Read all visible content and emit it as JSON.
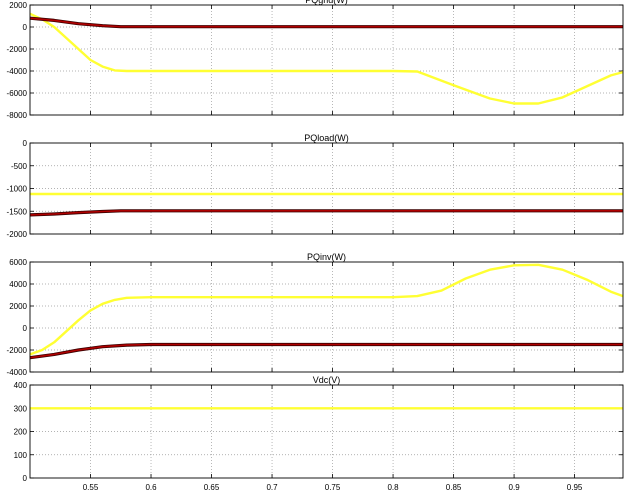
{
  "chart_data": [
    {
      "type": "line",
      "title": "PQgrid(W)",
      "xlim": [
        0.5,
        0.99
      ],
      "ylim": [
        -8000,
        2000
      ],
      "yticks": [
        2000,
        0,
        -2000,
        -4000,
        -6000,
        -8000
      ],
      "grid": true,
      "show_xticklabels": false,
      "series": [
        {
          "color": "#ffff33",
          "x": [
            0.5,
            0.51,
            0.52,
            0.53,
            0.54,
            0.55,
            0.56,
            0.57,
            0.58,
            0.6,
            0.7,
            0.8,
            0.82,
            0.85,
            0.88,
            0.9,
            0.92,
            0.94,
            0.96,
            0.98,
            0.99
          ],
          "y": [
            1200,
            700,
            0,
            -1000,
            -2000,
            -3000,
            -3600,
            -3950,
            -4000,
            -4000,
            -4000,
            -4000,
            -4050,
            -5300,
            -6500,
            -6950,
            -6950,
            -6400,
            -5400,
            -4400,
            -4100
          ]
        },
        {
          "color": "#b00000",
          "x": [
            0.5,
            0.52,
            0.54,
            0.56,
            0.575,
            0.6,
            0.7,
            0.8,
            0.9,
            0.99
          ],
          "y": [
            800,
            600,
            300,
            120,
            30,
            30,
            30,
            30,
            30,
            30
          ]
        }
      ]
    },
    {
      "type": "line",
      "title": "PQload(W)",
      "xlim": [
        0.5,
        0.99
      ],
      "ylim": [
        -2000,
        0
      ],
      "yticks": [
        0,
        -500,
        -1000,
        -1500,
        -2000
      ],
      "grid": true,
      "show_xticklabels": false,
      "series": [
        {
          "color": "#ffff33",
          "x": [
            0.5,
            0.99
          ],
          "y": [
            -1120,
            -1120
          ]
        },
        {
          "color": "#b00000",
          "x": [
            0.5,
            0.52,
            0.54,
            0.56,
            0.575,
            0.6,
            0.99
          ],
          "y": [
            -1580,
            -1560,
            -1530,
            -1505,
            -1490,
            -1490,
            -1490
          ]
        }
      ]
    },
    {
      "type": "line",
      "title": "PQinv(W)",
      "xlim": [
        0.5,
        0.99
      ],
      "ylim": [
        -4000,
        6000
      ],
      "yticks": [
        6000,
        4000,
        2000,
        0,
        -2000,
        -4000
      ],
      "grid": true,
      "show_xticklabels": false,
      "series": [
        {
          "color": "#ffff33",
          "x": [
            0.5,
            0.51,
            0.52,
            0.53,
            0.54,
            0.55,
            0.56,
            0.57,
            0.58,
            0.6,
            0.7,
            0.8,
            0.82,
            0.84,
            0.86,
            0.88,
            0.9,
            0.92,
            0.94,
            0.96,
            0.98,
            0.99
          ],
          "y": [
            -2400,
            -2000,
            -1300,
            -300,
            700,
            1600,
            2200,
            2550,
            2750,
            2800,
            2800,
            2800,
            2900,
            3400,
            4500,
            5300,
            5700,
            5750,
            5300,
            4400,
            3300,
            2900
          ]
        },
        {
          "color": "#b00000",
          "x": [
            0.5,
            0.52,
            0.54,
            0.56,
            0.58,
            0.6,
            0.99
          ],
          "y": [
            -2700,
            -2400,
            -2000,
            -1700,
            -1550,
            -1500,
            -1500
          ]
        }
      ]
    },
    {
      "type": "line",
      "title": "Vdc(V)",
      "xlim": [
        0.5,
        0.99
      ],
      "ylim": [
        0,
        400
      ],
      "yticks": [
        400,
        300,
        200,
        100,
        0
      ],
      "grid": true,
      "show_xticklabels": true,
      "xticks": [
        0.55,
        0.6,
        0.65,
        0.7,
        0.75,
        0.8,
        0.85,
        0.9,
        0.95
      ],
      "xticklabels": [
        "0.55",
        "0.6",
        "0.65",
        "0.7",
        "0.75",
        "0.8",
        "0.85",
        "0.9",
        "0.95"
      ],
      "series": [
        {
          "color": "#ffff33",
          "x": [
            0.5,
            0.99
          ],
          "y": [
            300,
            300
          ]
        }
      ]
    }
  ]
}
